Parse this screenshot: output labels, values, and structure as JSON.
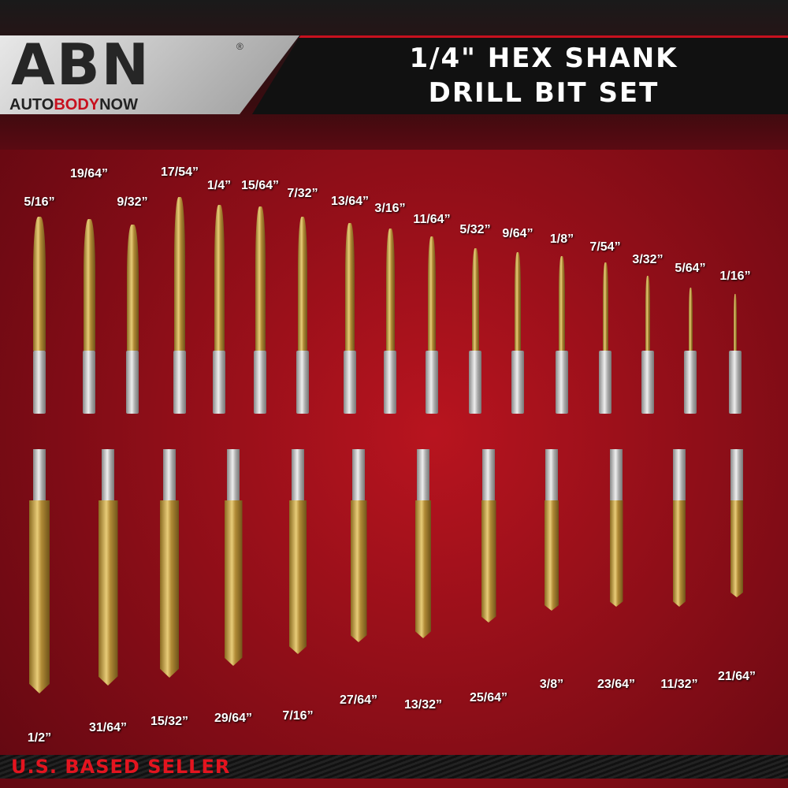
{
  "brand": {
    "logo": "ABN",
    "registered": "®",
    "tagline_pre": "AUTO",
    "tagline_mid": "BODY",
    "tagline_post": "NOW"
  },
  "title": {
    "line1": "1/4\" HEX SHANK",
    "line2": "DRILL BIT SET"
  },
  "top_row": [
    "5/16”",
    "19/64”",
    "9/32”",
    "17/54”",
    "1/4”",
    "15/64”",
    "7/32”",
    "13/64”",
    "3/16”",
    "11/64”",
    "5/32”",
    "9/64”",
    "1/8”",
    "7/54”",
    "3/32”",
    "5/64”",
    "1/16”"
  ],
  "bottom_row": [
    "1/2”",
    "31/64”",
    "15/32”",
    "29/64”",
    "7/16”",
    "27/64”",
    "13/32”",
    "25/64”",
    "3/8”",
    "23/64”",
    "11/32”",
    "21/64”"
  ],
  "footer": "U.S. BASED SELLER",
  "colors": {
    "accent": "#c8101e",
    "gold": "#c9a94a",
    "steel": "#c8c8c8"
  }
}
